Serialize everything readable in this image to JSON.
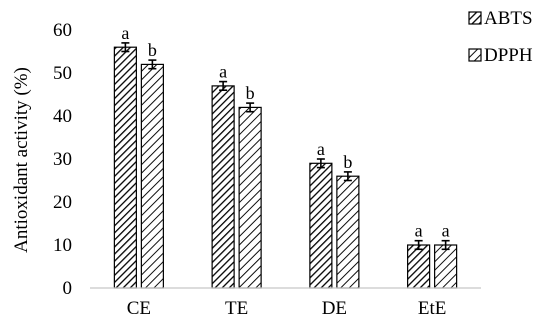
{
  "chart_data": {
    "type": "bar",
    "title": "",
    "xlabel": "",
    "ylabel": "Antioxidant activity (%)",
    "ylim": [
      0,
      60
    ],
    "yticks": [
      0,
      10,
      20,
      30,
      40,
      50,
      60
    ],
    "grid": false,
    "legend_position": "top-right",
    "categories": [
      "CE",
      "TE",
      "DE",
      "EtE"
    ],
    "series": [
      {
        "name": "ABTS",
        "values": [
          56,
          47,
          29,
          10
        ],
        "errors": [
          1.0,
          1.0,
          1.0,
          1.0
        ],
        "labels": [
          "a",
          "a",
          "a",
          "a"
        ],
        "pattern": "dense-diagonal-hatch"
      },
      {
        "name": "DPPH",
        "values": [
          52,
          42,
          26,
          10
        ],
        "errors": [
          1.0,
          1.0,
          1.0,
          1.0
        ],
        "labels": [
          "b",
          "b",
          "b",
          "a"
        ],
        "pattern": "wide-diagonal-hatch"
      }
    ]
  }
}
